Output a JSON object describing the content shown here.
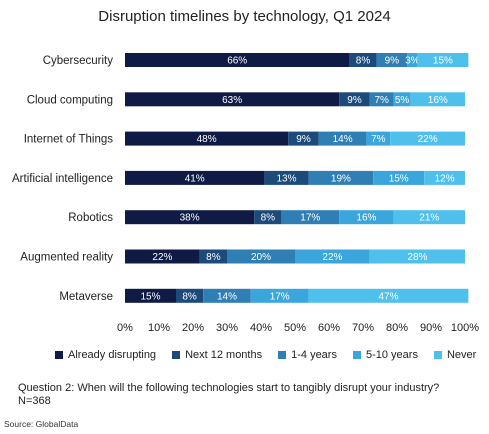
{
  "chart_data": {
    "type": "stacked-bar-horizontal",
    "title": "Disruption timelines by technology, Q1 2024",
    "categories": [
      "Cybersecurity",
      "Cloud computing",
      "Internet of Things",
      "Artificial intelligence",
      "Robotics",
      "Augmented reality",
      "Metaverse"
    ],
    "series": [
      {
        "name": "Already disrupting",
        "color": "#0f1b45",
        "label_color": "#ffffff",
        "values": [
          66,
          63,
          48,
          41,
          38,
          22,
          15
        ]
      },
      {
        "name": "Next 12 months",
        "color": "#1c4a7a",
        "label_color": "#ffffff",
        "values": [
          8,
          9,
          9,
          13,
          8,
          8,
          8
        ]
      },
      {
        "name": "1-4 years",
        "color": "#2f7fb5",
        "label_color": "#ffffff",
        "values": [
          9,
          7,
          14,
          19,
          17,
          20,
          14
        ]
      },
      {
        "name": "5-10 years",
        "color": "#3aa6db",
        "label_color": "#ffffff",
        "values": [
          3,
          5,
          7,
          15,
          16,
          22,
          17
        ]
      },
      {
        "name": "Never",
        "color": "#4fc0ec",
        "label_color": "#ffffff",
        "values": [
          15,
          16,
          22,
          12,
          21,
          28,
          47
        ]
      }
    ],
    "value_format": "percent",
    "xlim": [
      0,
      100
    ],
    "x_ticks": [
      "0%",
      "10%",
      "20%",
      "30%",
      "40%",
      "50%",
      "60%",
      "70%",
      "80%",
      "90%",
      "100%"
    ],
    "grid": false,
    "legend_position": "bottom"
  },
  "footnote": {
    "question": "Question 2: When will the following technologies start to tangibly disrupt your industry?",
    "sample": "N=368",
    "source": "Source: GlobalData"
  }
}
